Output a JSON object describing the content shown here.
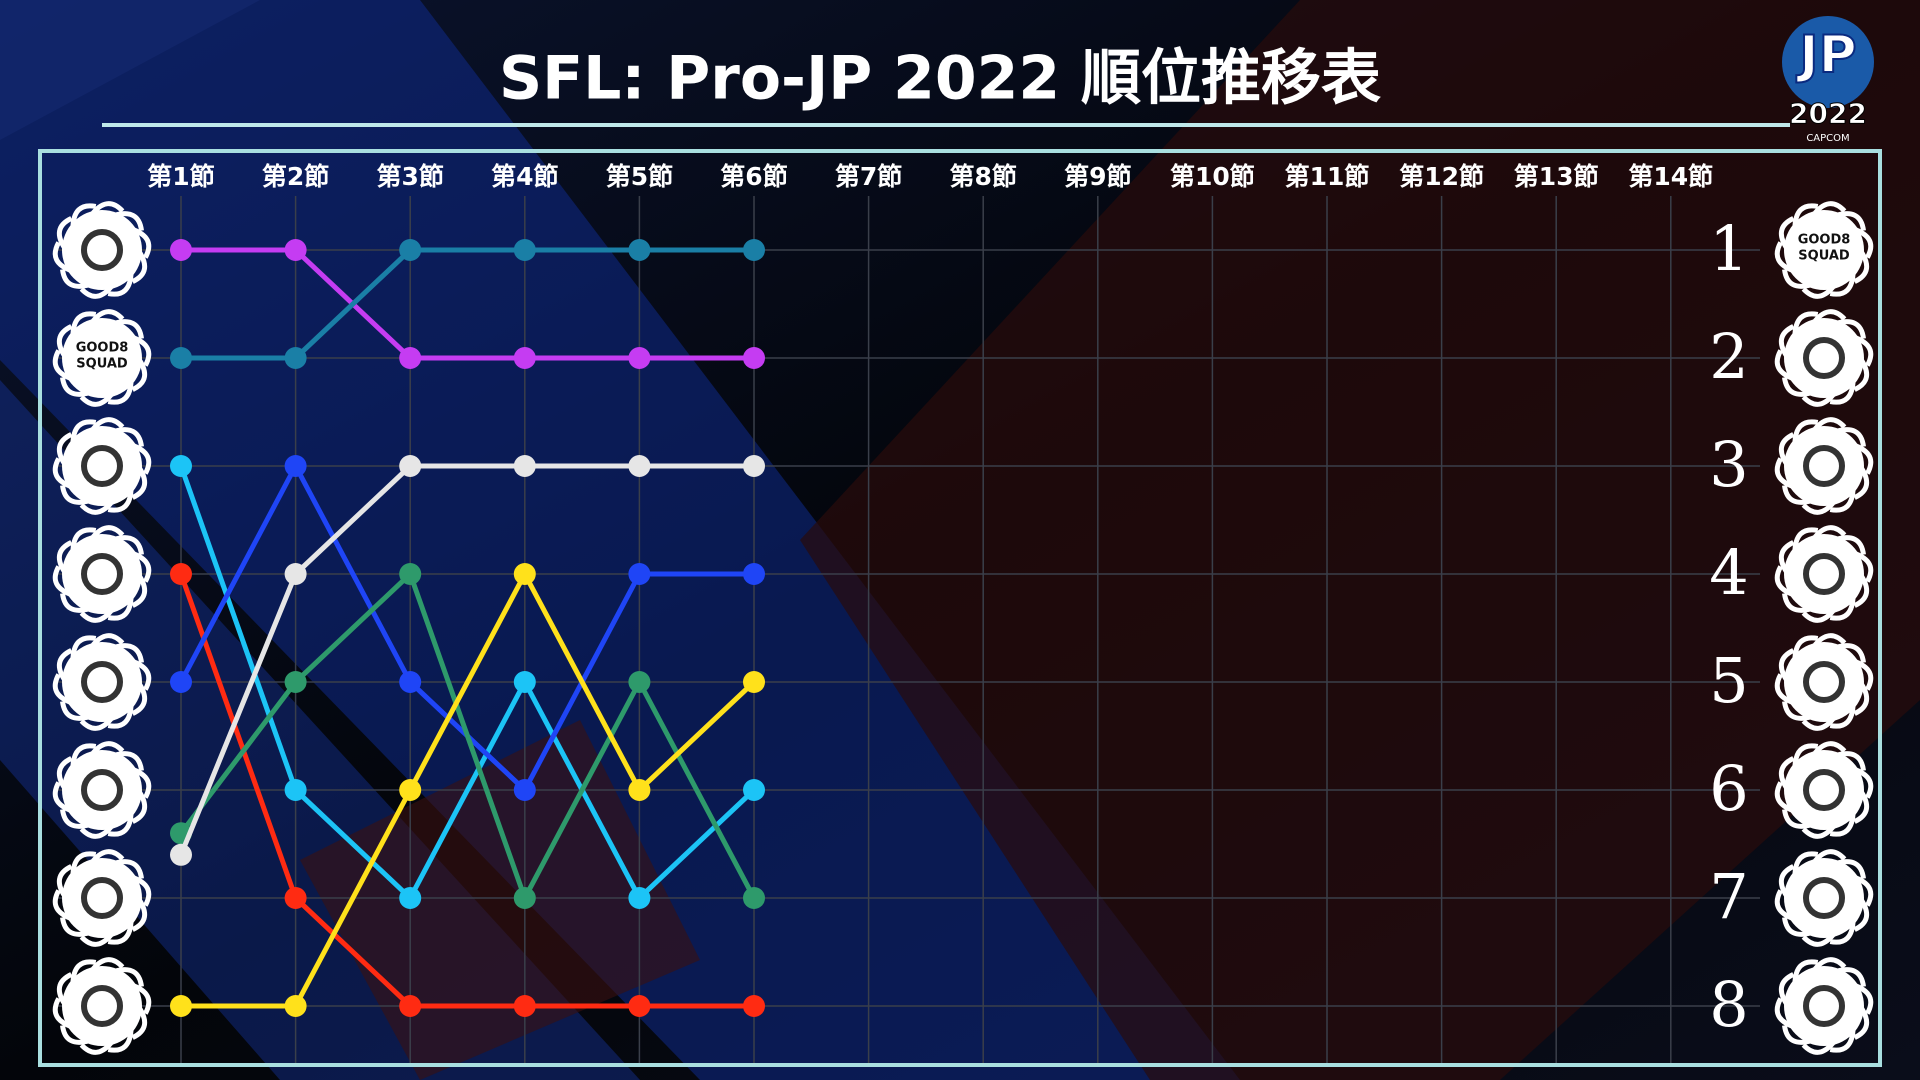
{
  "chart_data": {
    "type": "line",
    "title": "SFL: Pro-JP 2022  順位推移表",
    "badge": [
      "JP",
      "2022",
      "CAPCOM"
    ],
    "logo_text": [
      "GOOD8",
      "SQUAD"
    ],
    "categories": [
      "第1節",
      "第2節",
      "第3節",
      "第4節",
      "第5節",
      "第6節",
      "第7節",
      "第8節",
      "第9節",
      "第10節",
      "第11節",
      "第12節",
      "第13節",
      "第14節"
    ],
    "ylim": [
      1,
      8
    ],
    "y_inverted": true,
    "yticks": [
      1,
      2,
      3,
      4,
      5,
      6,
      7,
      8
    ],
    "grid": true,
    "series": [
      {
        "color": "#c53cf2",
        "values": [
          1,
          1,
          2,
          2,
          2,
          2,
          null,
          null,
          null,
          null,
          null,
          null,
          null,
          null
        ]
      },
      {
        "color": "#1a7fa6",
        "values": [
          2,
          2,
          1,
          1,
          1,
          1,
          null,
          null,
          null,
          null,
          null,
          null,
          null,
          null
        ]
      },
      {
        "color": "#1cc4f6",
        "values": [
          3,
          6,
          7,
          5,
          7,
          6,
          null,
          null,
          null,
          null,
          null,
          null,
          null,
          null
        ]
      },
      {
        "color": "#ff2b12",
        "values": [
          4,
          7,
          8,
          8,
          8,
          8,
          null,
          null,
          null,
          null,
          null,
          null,
          null,
          null
        ]
      },
      {
        "color": "#1f45f6",
        "values": [
          5,
          3,
          5,
          6,
          4,
          4,
          null,
          null,
          null,
          null,
          null,
          null,
          null,
          null
        ]
      },
      {
        "color": "#2e9a6b",
        "values": [
          6.4,
          5,
          4,
          7,
          5,
          7,
          null,
          null,
          null,
          null,
          null,
          null,
          null,
          null
        ]
      },
      {
        "color": "#e6e6e6",
        "values": [
          6.6,
          4,
          3,
          3,
          3,
          3,
          null,
          null,
          null,
          null,
          null,
          null,
          null,
          null
        ]
      },
      {
        "color": "#ffe11b",
        "values": [
          8,
          8,
          6,
          4,
          6,
          5,
          null,
          null,
          null,
          null,
          null,
          null,
          null,
          null
        ]
      }
    ]
  }
}
